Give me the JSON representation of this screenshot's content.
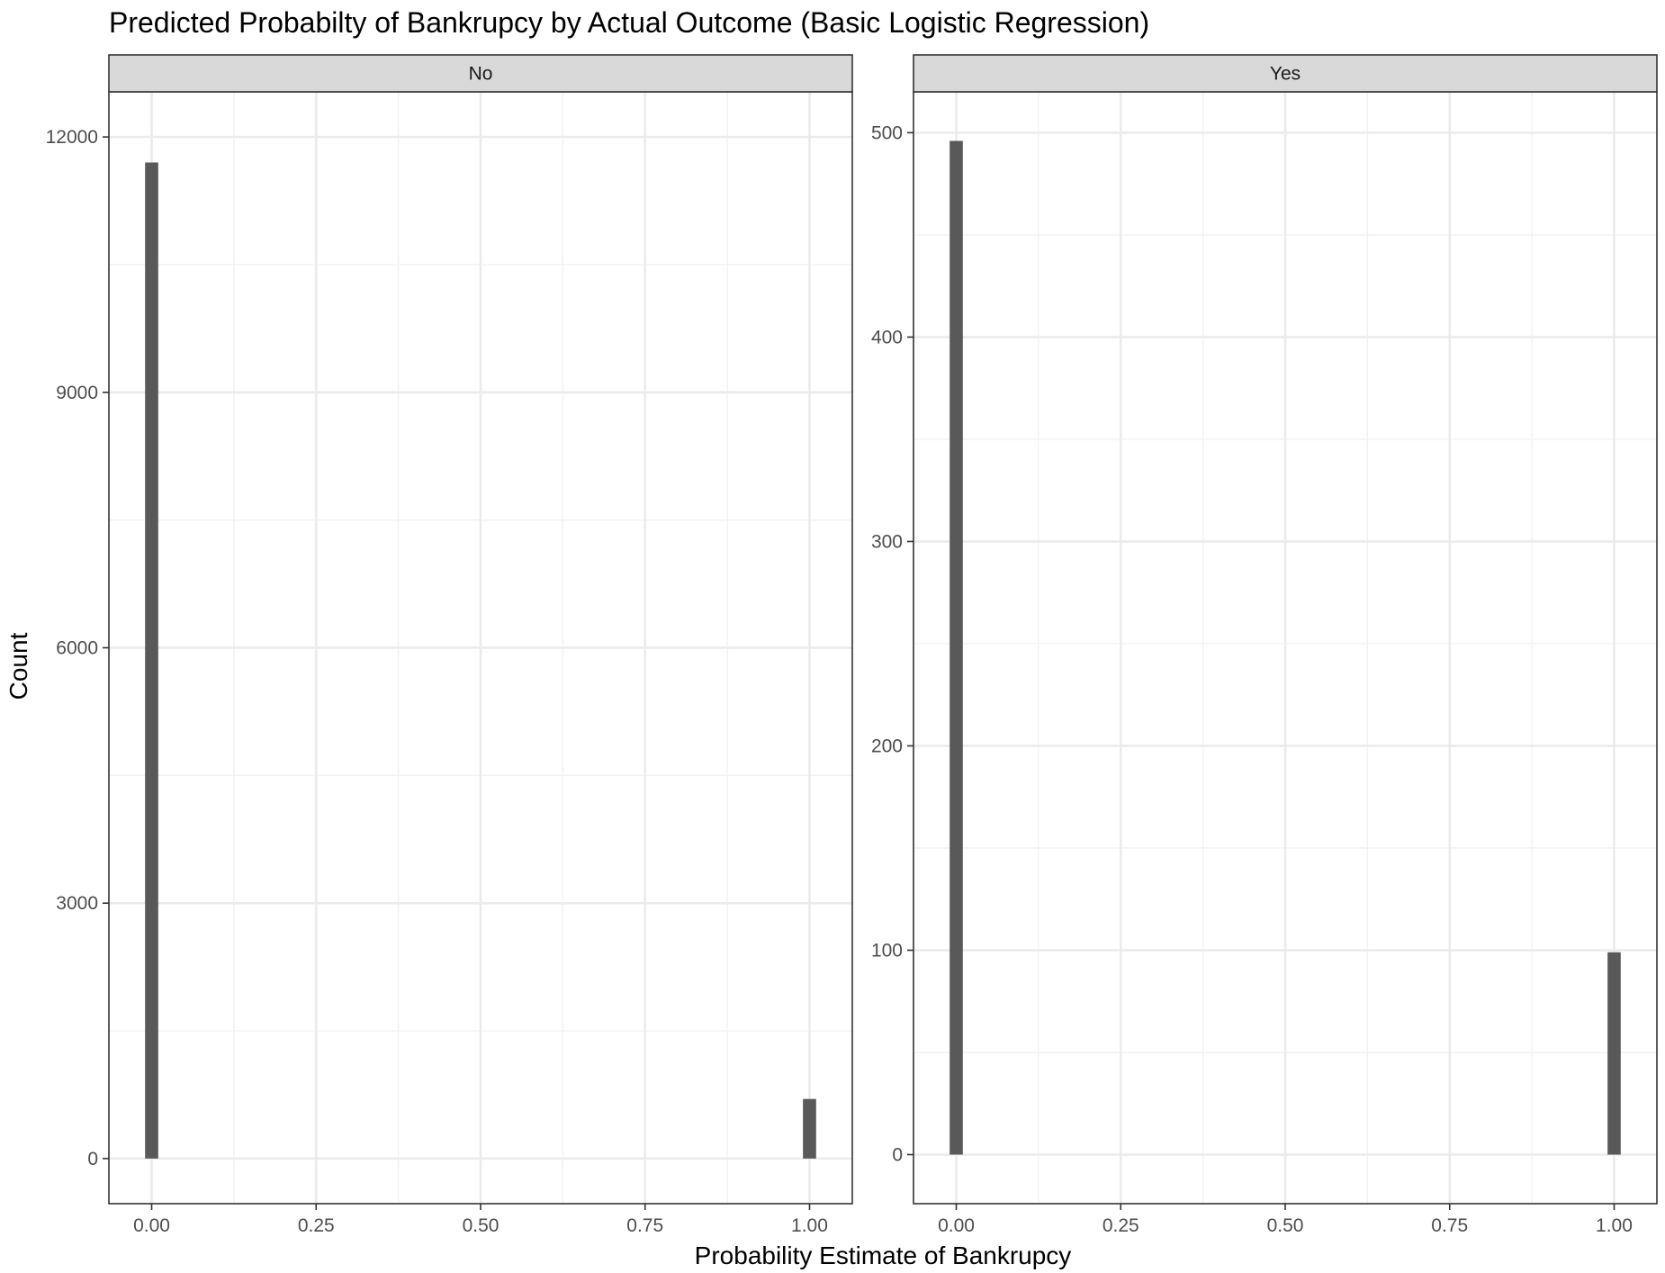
{
  "chart_data": {
    "type": "bar",
    "title": "Predicted Probabilty of Bankrupcy by Actual Outcome (Basic Logistic Regression)",
    "xlabel": "Probability Estimate of Bankrupcy",
    "ylabel": "Count",
    "x_ticks": [
      0,
      0.25,
      0.5,
      0.75,
      1
    ],
    "x_tick_labels": [
      "0.00",
      "0.25",
      "0.50",
      "0.75",
      "1.00"
    ],
    "xlim": [
      -0.065,
      1.065
    ],
    "bin_width": 0.02,
    "grid": true,
    "facets": [
      {
        "label": "No",
        "ylim": [
          -530,
          12530
        ],
        "y_ticks": [
          0,
          3000,
          6000,
          9000,
          12000
        ],
        "y_tick_labels": [
          "0",
          "3000",
          "6000",
          "9000",
          "12000"
        ],
        "bars": [
          {
            "x": 0.0,
            "count": 11700
          },
          {
            "x": 1.0,
            "count": 700
          }
        ]
      },
      {
        "label": "Yes",
        "ylim": [
          -24,
          520
        ],
        "y_ticks": [
          0,
          100,
          200,
          300,
          400,
          500
        ],
        "y_tick_labels": [
          "0",
          "100",
          "200",
          "300",
          "400",
          "500"
        ],
        "bars": [
          {
            "x": 0.0,
            "count": 496
          },
          {
            "x": 1.0,
            "count": 99
          }
        ]
      }
    ],
    "colors": {
      "bar": "#595959",
      "panel_border": "#333333",
      "grid_major": "#ebebeb",
      "grid_minor": "#f2f2f2",
      "strip_fill": "#d9d9d9"
    }
  }
}
